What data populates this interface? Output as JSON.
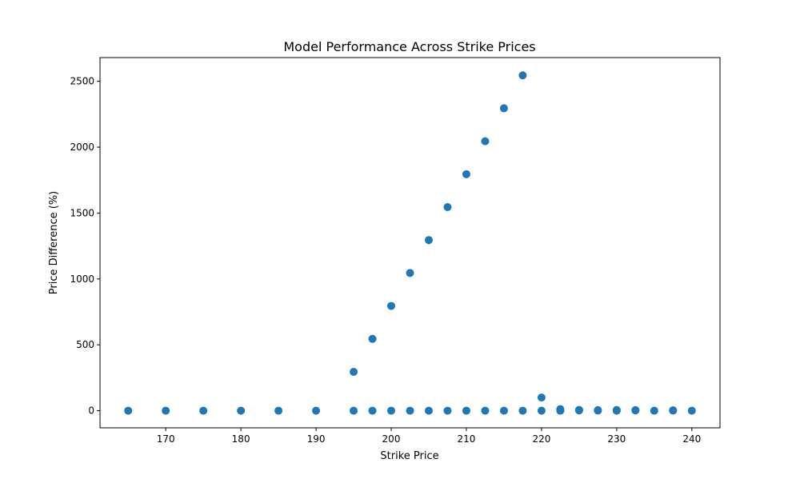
{
  "chart_data": {
    "type": "scatter",
    "title": "Model Performance Across Strike Prices",
    "xlabel": "Strike Price",
    "ylabel": "Price Difference (%)",
    "xlim": [
      161.25,
      243.75
    ],
    "ylim": [
      -130,
      2680
    ],
    "xticks": [
      170,
      180,
      190,
      200,
      210,
      220,
      230,
      240
    ],
    "yticks": [
      0,
      500,
      1000,
      1500,
      2000,
      2500
    ],
    "grid": false,
    "marker_color": "#1f77b4",
    "series": [
      {
        "x": [
          165,
          170,
          175,
          180,
          185,
          190,
          195,
          197.5,
          200,
          202.5,
          205,
          207.5,
          210,
          212.5,
          215,
          217.5,
          220,
          222.5,
          225,
          227.5,
          230,
          232.5,
          235,
          237.5,
          240,
          195,
          197.5,
          200,
          202.5,
          205,
          207.5,
          210,
          212.5,
          215,
          217.5,
          220,
          222.5,
          225,
          227.5,
          230,
          232.5,
          237.5
        ],
        "y": [
          0,
          0,
          0,
          0,
          0,
          0,
          0,
          0,
          0,
          0,
          0,
          0,
          0,
          0,
          0,
          0,
          0,
          0,
          2,
          1,
          0,
          2,
          0,
          1,
          0,
          295,
          545,
          795,
          1045,
          1295,
          1545,
          1795,
          2045,
          2295,
          2545,
          100,
          12,
          6,
          4,
          5,
          4,
          3
        ]
      }
    ]
  }
}
